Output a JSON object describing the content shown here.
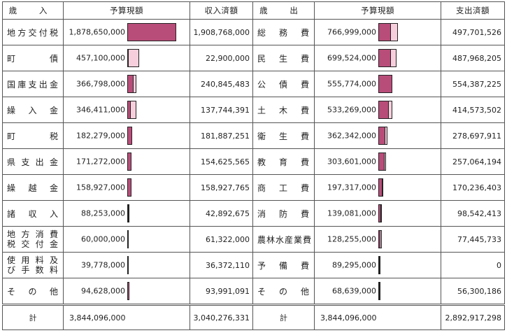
{
  "colors": {
    "budget_bar": "#f7cfdc",
    "actual_bar": "#b94d7a"
  },
  "headers": {
    "rev_item": "歳 入",
    "rev_budget": "予算現額",
    "rev_actual": "収入済額",
    "exp_item": "歳 出",
    "exp_budget": "予算現額",
    "exp_actual": "支出済額"
  },
  "max_value": 1908768000,
  "rows": [
    {
      "rev_label": [
        "地方交付税"
      ],
      "rev_budget": "1,878,650,000",
      "rev_budget_value": 1878650000,
      "rev_actual": "1,908,768,000",
      "rev_actual_value": 1908768000,
      "exp_label": [
        "総務費"
      ],
      "exp_budget": "766,999,000",
      "exp_budget_value": 766999000,
      "exp_actual": "497,701,526",
      "exp_actual_value": 497701526
    },
    {
      "rev_label": [
        "町債"
      ],
      "rev_budget": "457,100,000",
      "rev_budget_value": 457100000,
      "rev_actual": "22,900,000",
      "rev_actual_value": 22900000,
      "exp_label": [
        "民生費"
      ],
      "exp_budget": "699,524,000",
      "exp_budget_value": 699524000,
      "exp_actual": "487,968,205",
      "exp_actual_value": 487968205
    },
    {
      "rev_label": [
        "国庫支出金"
      ],
      "rev_budget": "366,798,000",
      "rev_budget_value": 366798000,
      "rev_actual": "240,845,483",
      "rev_actual_value": 240845483,
      "exp_label": [
        "公債費"
      ],
      "exp_budget": "555,774,000",
      "exp_budget_value": 555774000,
      "exp_actual": "554,387,225",
      "exp_actual_value": 554387225
    },
    {
      "rev_label": [
        "繰入金"
      ],
      "rev_budget": "346,411,000",
      "rev_budget_value": 346411000,
      "rev_actual": "137,744,391",
      "rev_actual_value": 137744391,
      "exp_label": [
        "土木費"
      ],
      "exp_budget": "533,269,000",
      "exp_budget_value": 533269000,
      "exp_actual": "414,573,502",
      "exp_actual_value": 414573502
    },
    {
      "rev_label": [
        "町税"
      ],
      "rev_budget": "182,279,000",
      "rev_budget_value": 182279000,
      "rev_actual": "181,887,251",
      "rev_actual_value": 181887251,
      "exp_label": [
        "衛生費"
      ],
      "exp_budget": "362,342,000",
      "exp_budget_value": 362342000,
      "exp_actual": "278,697,911",
      "exp_actual_value": 278697911
    },
    {
      "rev_label": [
        "県支出金"
      ],
      "rev_budget": "171,272,000",
      "rev_budget_value": 171272000,
      "rev_actual": "154,625,565",
      "rev_actual_value": 154625565,
      "exp_label": [
        "教育費"
      ],
      "exp_budget": "303,601,000",
      "exp_budget_value": 303601000,
      "exp_actual": "257,064,194",
      "exp_actual_value": 257064194
    },
    {
      "rev_label": [
        "繰越金"
      ],
      "rev_budget": "158,927,000",
      "rev_budget_value": 158927000,
      "rev_actual": "158,927,765",
      "rev_actual_value": 158927765,
      "exp_label": [
        "商工費"
      ],
      "exp_budget": "197,317,000",
      "exp_budget_value": 197317000,
      "exp_actual": "170,236,403",
      "exp_actual_value": 170236403
    },
    {
      "rev_label": [
        "諸収入"
      ],
      "rev_budget": "88,253,000",
      "rev_budget_value": 88253000,
      "rev_actual": "42,892,675",
      "rev_actual_value": 42892675,
      "exp_label": [
        "消防費"
      ],
      "exp_budget": "139,081,000",
      "exp_budget_value": 139081000,
      "exp_actual": "98,542,413",
      "exp_actual_value": 98542413
    },
    {
      "rev_label": [
        "地方消費",
        "税交付金"
      ],
      "rev_budget": "60,000,000",
      "rev_budget_value": 60000000,
      "rev_actual": "61,322,000",
      "rev_actual_value": 61322000,
      "exp_label": [
        "農林水産業費"
      ],
      "exp_budget": "128,255,000",
      "exp_budget_value": 128255000,
      "exp_actual": "77,445,733",
      "exp_actual_value": 77445733
    },
    {
      "rev_label": [
        "使用料及",
        "び手数料"
      ],
      "rev_budget": "39,778,000",
      "rev_budget_value": 39778000,
      "rev_actual": "36,372,110",
      "rev_actual_value": 36372110,
      "exp_label": [
        "予備費"
      ],
      "exp_budget": "89,295,000",
      "exp_budget_value": 89295000,
      "exp_actual": "0",
      "exp_actual_value": 0
    },
    {
      "rev_label": [
        "その他"
      ],
      "rev_budget": "94,628,000",
      "rev_budget_value": 94628000,
      "rev_actual": "93,991,091",
      "rev_actual_value": 93991091,
      "exp_label": [
        "その他"
      ],
      "exp_budget": "68,639,000",
      "exp_budget_value": 68639000,
      "exp_actual": "56,300,186",
      "exp_actual_value": 56300186
    }
  ],
  "total": {
    "rev_label": "計",
    "rev_budget": "3,844,096,000",
    "rev_actual": "3,040,276,331",
    "exp_label": "計",
    "exp_budget": "3,844,096,000",
    "exp_actual": "2,892,917,298"
  }
}
